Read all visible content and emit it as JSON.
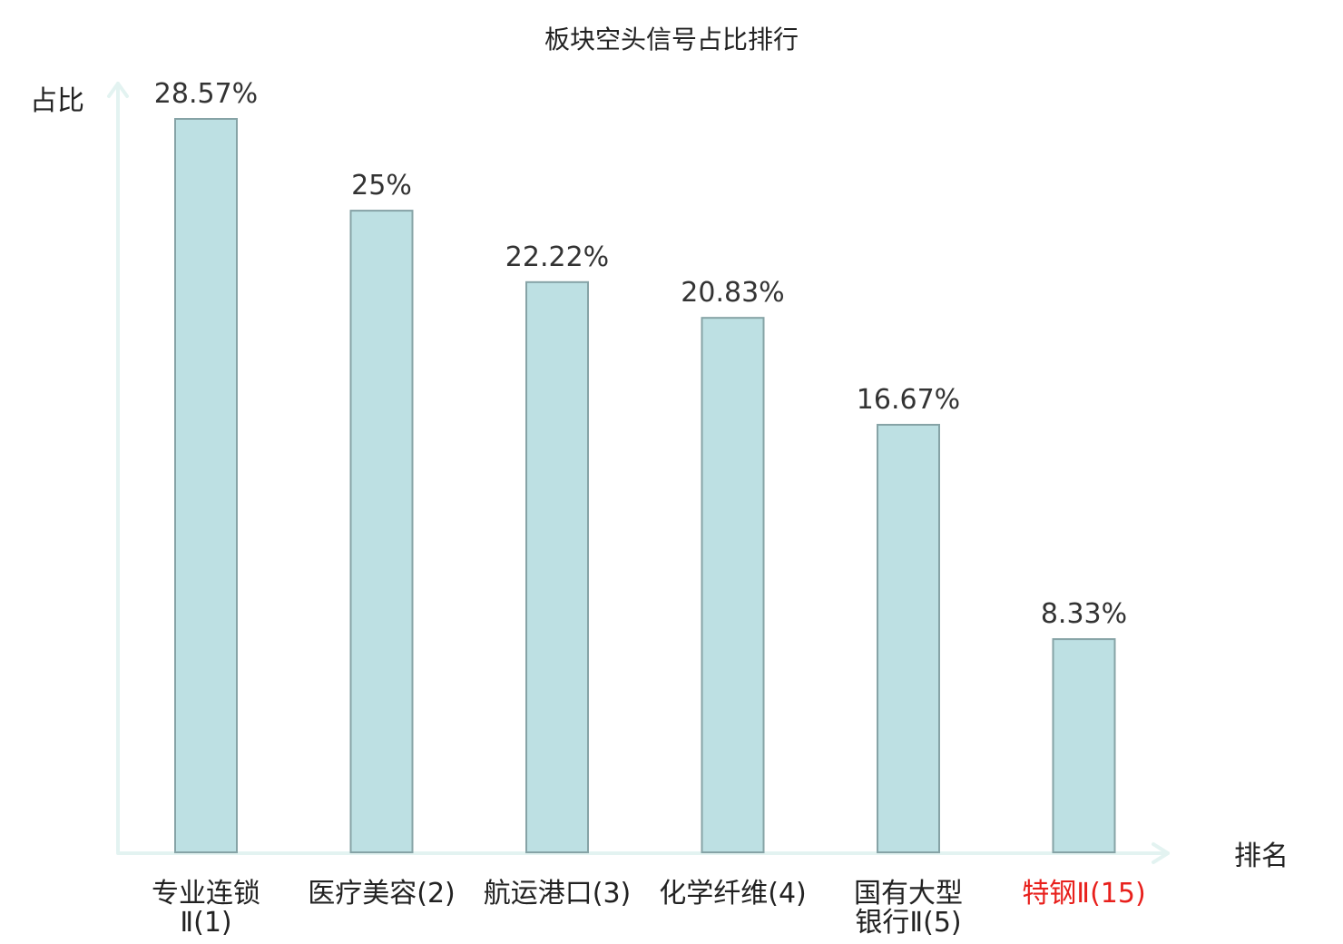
{
  "chart_data": {
    "type": "bar",
    "title": "板块空头信号占比排行",
    "ylabel": "占比",
    "xlabel": "排名",
    "ylim": [
      0,
      30
    ],
    "grid": false,
    "categories": [
      [
        "专业连锁",
        "Ⅱ(1)"
      ],
      [
        "医疗美容(2)"
      ],
      [
        "航运港口(3)"
      ],
      [
        "化学纤维(4)"
      ],
      [
        "国有大型",
        "银行Ⅱ(5)"
      ],
      [
        "特钢Ⅱ(15)"
      ]
    ],
    "values": [
      28.57,
      25,
      22.22,
      20.83,
      16.67,
      8.33
    ],
    "value_labels": [
      "28.57%",
      "25%",
      "22.22%",
      "20.83%",
      "16.67%",
      "8.33%"
    ],
    "highlight_index": 5,
    "colors": {
      "bar_fill": "#bde0e3",
      "bar_stroke": "#86a3a6",
      "axis": "#e3f3f1",
      "highlight_label": "#e8201c"
    }
  }
}
